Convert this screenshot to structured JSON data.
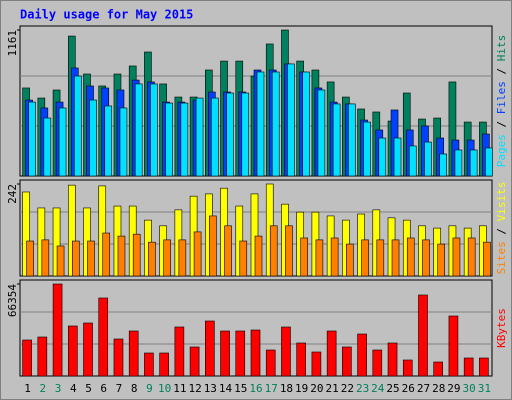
{
  "chart_data": {
    "type": "bar",
    "title": "Daily usage for May 2015",
    "categories": [
      "1",
      "2",
      "3",
      "4",
      "5",
      "6",
      "7",
      "8",
      "9",
      "10",
      "11",
      "12",
      "13",
      "14",
      "15",
      "16",
      "17",
      "18",
      "19",
      "20",
      "21",
      "22",
      "23",
      "24",
      "25",
      "26",
      "27",
      "28",
      "29",
      "30",
      "31"
    ],
    "category_colors": [
      "#000000",
      "#00805c",
      "#00805c",
      "#000000",
      "#000000",
      "#000000",
      "#000000",
      "#000000",
      "#00805c",
      "#00805c",
      "#000000",
      "#000000",
      "#000000",
      "#000000",
      "#000000",
      "#00805c",
      "#00805c",
      "#000000",
      "#000000",
      "#000000",
      "#000000",
      "#000000",
      "#00805c",
      "#00805c",
      "#000000",
      "#000000",
      "#000000",
      "#000000",
      "#000000",
      "#00805c",
      "#00805c"
    ],
    "legend_separator": " / ",
    "panels": [
      {
        "ylim": [
          0,
          1161
        ],
        "yticks": [
          1161
        ],
        "series": [
          {
            "name": "Pages",
            "color": "#00e0ff",
            "values": [
              588,
              461,
              541,
              795,
              604,
              557,
              541,
              732,
              732,
              580,
              580,
              620,
              620,
              660,
              660,
              827,
              827,
              891,
              827,
              684,
              573,
              573,
              429,
              302,
              302,
              239,
              270,
              175,
              207,
              207,
              223
            ]
          },
          {
            "name": "Files",
            "color": "#0040ff",
            "values": [
              604,
              541,
              588,
              859,
              716,
              700,
              684,
              763,
              748,
              588,
              588,
              604,
              668,
              668,
              668,
              843,
              843,
              891,
              827,
              700,
              588,
              573,
              445,
              366,
              525,
              366,
              398,
              302,
              286,
              286,
              334
            ]
          },
          {
            "name": "Hits",
            "color": "#00805c",
            "values": [
              700,
              620,
              684,
              1113,
              811,
              716,
              811,
              875,
              986,
              732,
              628,
              628,
              843,
              914,
              914,
              795,
              1050,
              1161,
              914,
              843,
              748,
              628,
              533,
              509,
              437,
              660,
              453,
              461,
              748,
              429,
              429
            ]
          }
        ]
      },
      {
        "ylim": [
          0,
          242
        ],
        "yticks": [
          242
        ],
        "series": [
          {
            "name": "Sites",
            "color": "#ff8000",
            "values": [
              92,
              95,
              79,
              92,
              92,
              113,
              105,
              110,
              89,
              95,
              95,
              116,
              158,
              132,
              92,
              105,
              132,
              132,
              100,
              95,
              100,
              84,
              95,
              95,
              95,
              100,
              95,
              84,
              100,
              100,
              89
            ]
          },
          {
            "name": "Visits",
            "color": "#ffff00",
            "values": [
              221,
              179,
              179,
              239,
              179,
              237,
              184,
              184,
              147,
              132,
              174,
              210,
              216,
              231,
              184,
              216,
              242,
              189,
              168,
              168,
              158,
              147,
              163,
              174,
              153,
              147,
              132,
              126,
              132,
              126,
              132
            ]
          }
        ]
      },
      {
        "ylim": [
          0,
          66354
        ],
        "yticks": [
          66354
        ],
        "series": [
          {
            "name": "KBytes",
            "color": "#ff0000",
            "values": [
              25964,
              28128,
              66354,
              36062,
              38226,
              56256,
              26685,
              32456,
              16588,
              16588,
              35341,
              20916,
              39668,
              32456,
              32456,
              33177,
              18752,
              35341,
              23801,
              17310,
              32456,
              20916,
              30292,
              18752,
              23801,
              11540,
              58420,
              10097,
              43274,
              12982,
              12982
            ]
          }
        ]
      }
    ]
  }
}
